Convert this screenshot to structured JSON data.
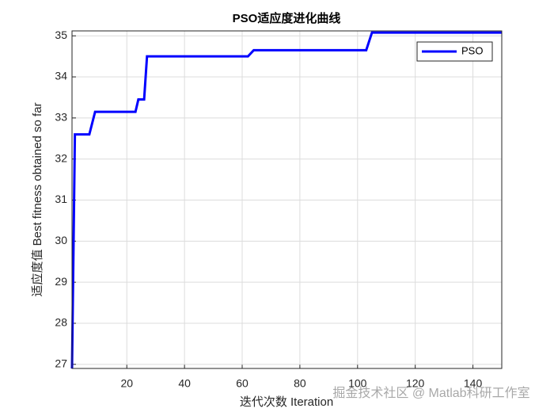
{
  "chart_data": {
    "type": "line",
    "title": "PSO适应度进化曲线",
    "x_label": "迭代次数 Iteration",
    "y_label": "适应度值 Best fitness obtained so far",
    "x": [
      1,
      2,
      7,
      9,
      23,
      24,
      26,
      27,
      62,
      64,
      103,
      105,
      150
    ],
    "series": [
      {
        "name": "PSO",
        "color": "#0000ff",
        "values": [
          26.9,
          32.6,
          32.6,
          33.15,
          33.15,
          33.45,
          33.45,
          34.5,
          34.5,
          34.65,
          34.65,
          35.08,
          35.08
        ]
      }
    ],
    "xlim": [
      1,
      150
    ],
    "xticks": [
      20,
      40,
      60,
      80,
      100,
      120,
      140
    ],
    "ylim": [
      26.9,
      35.12
    ],
    "yticks": [
      27,
      28,
      29,
      30,
      31,
      32,
      33,
      34,
      35
    ],
    "grid": true,
    "legend": "top-right",
    "watermark": "掘金技术社区 @ Matlab科研工作室"
  }
}
